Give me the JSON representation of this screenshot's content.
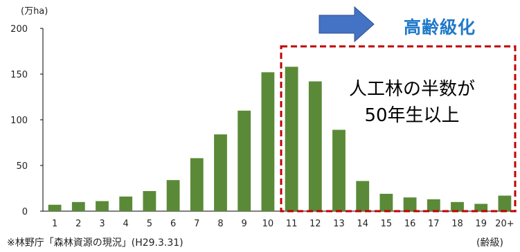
{
  "chart_data": {
    "type": "bar",
    "title": "",
    "ylabel": "(万ha)",
    "xlabel": "(齢級)",
    "ylim": [
      0,
      200
    ],
    "yticks": [
      0,
      50,
      100,
      150,
      200
    ],
    "categories": [
      "1",
      "2",
      "3",
      "4",
      "5",
      "6",
      "7",
      "8",
      "9",
      "10",
      "11",
      "12",
      "13",
      "14",
      "15",
      "16",
      "17",
      "18",
      "19",
      "20+"
    ],
    "values": [
      7,
      10,
      11,
      16,
      22,
      34,
      58,
      84,
      110,
      152,
      158,
      142,
      89,
      33,
      19,
      15,
      13,
      10,
      8,
      17
    ],
    "bar_color": "#5a8a37",
    "highlight": {
      "from_category": "11",
      "to_category": "20+",
      "border_color": "#c00000",
      "text_lines": [
        "人工林の半数が",
        "50年生以上"
      ]
    },
    "arrow_color": "#4472c4",
    "headline": "高齢級化",
    "headline_color": "#1f78c8",
    "source": "※林野庁「森林資源の現況」(H29.3.31)"
  }
}
